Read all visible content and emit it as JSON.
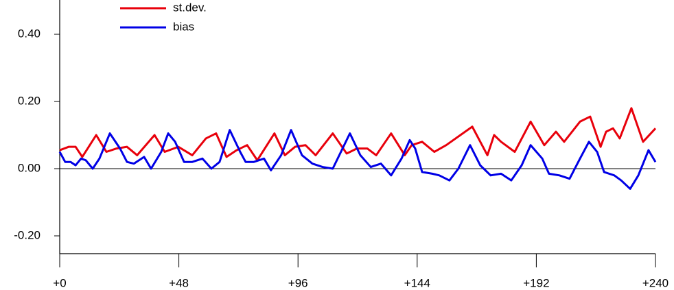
{
  "chart_data": {
    "type": "line",
    "series": [
      {
        "name": "st.dev.",
        "color": "#e8000b",
        "x": [
          0,
          3.6,
          6.4,
          9.1,
          14.7,
          18.8,
          22.9,
          27.1,
          31.2,
          38.2,
          42.3,
          47.8,
          53.4,
          58.9,
          63.0,
          67.2,
          71.3,
          75.5,
          79.6,
          86.5,
          90.7,
          94.8,
          99.0,
          103.1,
          110.0,
          115.6,
          119.7,
          123.9,
          127.5,
          133.5,
          139.0,
          141.8,
          146.0,
          150.9,
          155.7,
          166.2,
          172.3,
          175.0,
          177.8,
          183.3,
          189.7,
          195.2,
          199.9,
          203.2,
          209.6,
          213.7,
          217.9,
          220.1,
          222.9,
          225.6,
          230.3,
          235.0,
          240
        ],
        "values": [
          0.055,
          0.065,
          0.065,
          0.035,
          0.1,
          0.05,
          0.06,
          0.065,
          0.04,
          0.1,
          0.05,
          0.065,
          0.04,
          0.09,
          0.105,
          0.035,
          0.055,
          0.07,
          0.025,
          0.105,
          0.04,
          0.065,
          0.07,
          0.04,
          0.105,
          0.045,
          0.06,
          0.06,
          0.04,
          0.105,
          0.04,
          0.07,
          0.08,
          0.05,
          0.07,
          0.125,
          0.04,
          0.1,
          0.08,
          0.05,
          0.14,
          0.07,
          0.11,
          0.08,
          0.14,
          0.155,
          0.065,
          0.11,
          0.12,
          0.09,
          0.18,
          0.08,
          0.12
        ]
      },
      {
        "name": "bias",
        "color": "#0000e6",
        "x": [
          0,
          2.2,
          4.4,
          6.4,
          8.6,
          10.5,
          13.3,
          16.0,
          20.2,
          24.3,
          27.1,
          29.9,
          34.0,
          36.8,
          40.9,
          43.7,
          46.5,
          50.1,
          53.4,
          57.5,
          61.1,
          64.4,
          68.5,
          72.7,
          74.9,
          78.2,
          82.3,
          85.1,
          89.2,
          93.2,
          97.6,
          101.8,
          105.9,
          110.0,
          116.9,
          121.1,
          125.3,
          129.4,
          133.5,
          137.7,
          141.0,
          143.2,
          146.0,
          150.1,
          152.9,
          157.0,
          160.6,
          165.3,
          169.4,
          173.6,
          177.8,
          181.9,
          186.1,
          189.7,
          194.4,
          197.1,
          201.3,
          205.4,
          209.6,
          213.2,
          216.5,
          219.3,
          223.4,
          226.2,
          229.8,
          233.1,
          237.2,
          240
        ],
        "values": [
          0.05,
          0.02,
          0.02,
          0.01,
          0.03,
          0.025,
          0.0,
          0.03,
          0.105,
          0.06,
          0.02,
          0.015,
          0.035,
          0.0,
          0.05,
          0.105,
          0.08,
          0.02,
          0.02,
          0.03,
          0.0,
          0.02,
          0.115,
          0.05,
          0.02,
          0.02,
          0.03,
          -0.005,
          0.04,
          0.115,
          0.04,
          0.015,
          0.005,
          0.0,
          0.105,
          0.04,
          0.005,
          0.015,
          -0.02,
          0.03,
          0.085,
          0.06,
          -0.01,
          -0.015,
          -0.02,
          -0.035,
          0.0,
          0.07,
          0.01,
          -0.02,
          -0.015,
          -0.035,
          0.01,
          0.07,
          0.03,
          -0.015,
          -0.02,
          -0.03,
          0.03,
          0.08,
          0.05,
          -0.01,
          -0.02,
          -0.035,
          -0.06,
          -0.02,
          0.055,
          0.02
        ]
      }
    ],
    "xlim": [
      0,
      240
    ],
    "xticks": [
      {
        "value": 0,
        "label": "+0"
      },
      {
        "value": 48,
        "label": "+48"
      },
      {
        "value": 96,
        "label": "+96"
      },
      {
        "value": 144,
        "label": "+144"
      },
      {
        "value": 192,
        "label": "+192"
      },
      {
        "value": 240,
        "label": "+240"
      }
    ],
    "ylim": [
      -0.253,
      0.502
    ],
    "yticks": [
      {
        "value": -0.2,
        "label": "-0.20"
      },
      {
        "value": 0,
        "label": "0.00"
      },
      {
        "value": 0.2,
        "label": "0.20"
      },
      {
        "value": 0.4,
        "label": "0.40"
      }
    ],
    "legend": "top-left"
  }
}
